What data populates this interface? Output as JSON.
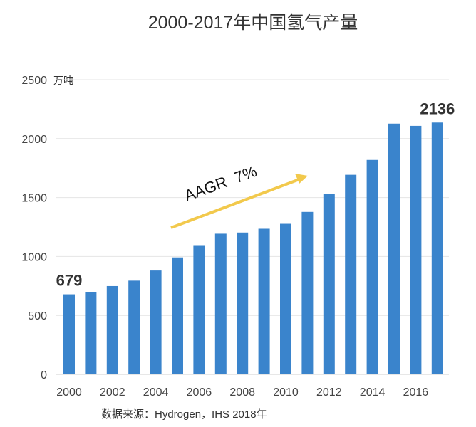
{
  "chart_data": {
    "type": "bar",
    "title": "2000-2017年中国氢气产量",
    "ylabel": "万吨",
    "xlabel": "",
    "ylim": [
      0,
      2500
    ],
    "yticks": [
      0,
      500,
      1000,
      1500,
      2000,
      2500
    ],
    "xtick_labels": [
      "2000",
      "2002",
      "2004",
      "2006",
      "2008",
      "2010",
      "2012",
      "2014",
      "2016"
    ],
    "categories": [
      "2000",
      "2001",
      "2002",
      "2003",
      "2004",
      "2005",
      "2006",
      "2007",
      "2008",
      "2009",
      "2010",
      "2011",
      "2012",
      "2013",
      "2014",
      "2015",
      "2016",
      "2017"
    ],
    "values": [
      679,
      695,
      749,
      795,
      881,
      992,
      1096,
      1193,
      1203,
      1235,
      1277,
      1378,
      1530,
      1693,
      1819,
      2127,
      2108,
      2136
    ],
    "data_labels": [
      {
        "index": 0,
        "text": "679"
      },
      {
        "index": 17,
        "text": "2136"
      }
    ],
    "annotation": "AAGR  7%",
    "source": "数据来源：Hydrogen，IHS 2018年",
    "grid": true,
    "colors": {
      "bar": "#3a84cc",
      "arrow": "#f2c94c",
      "grid": "#e4e4e4",
      "text": "#333333"
    }
  }
}
